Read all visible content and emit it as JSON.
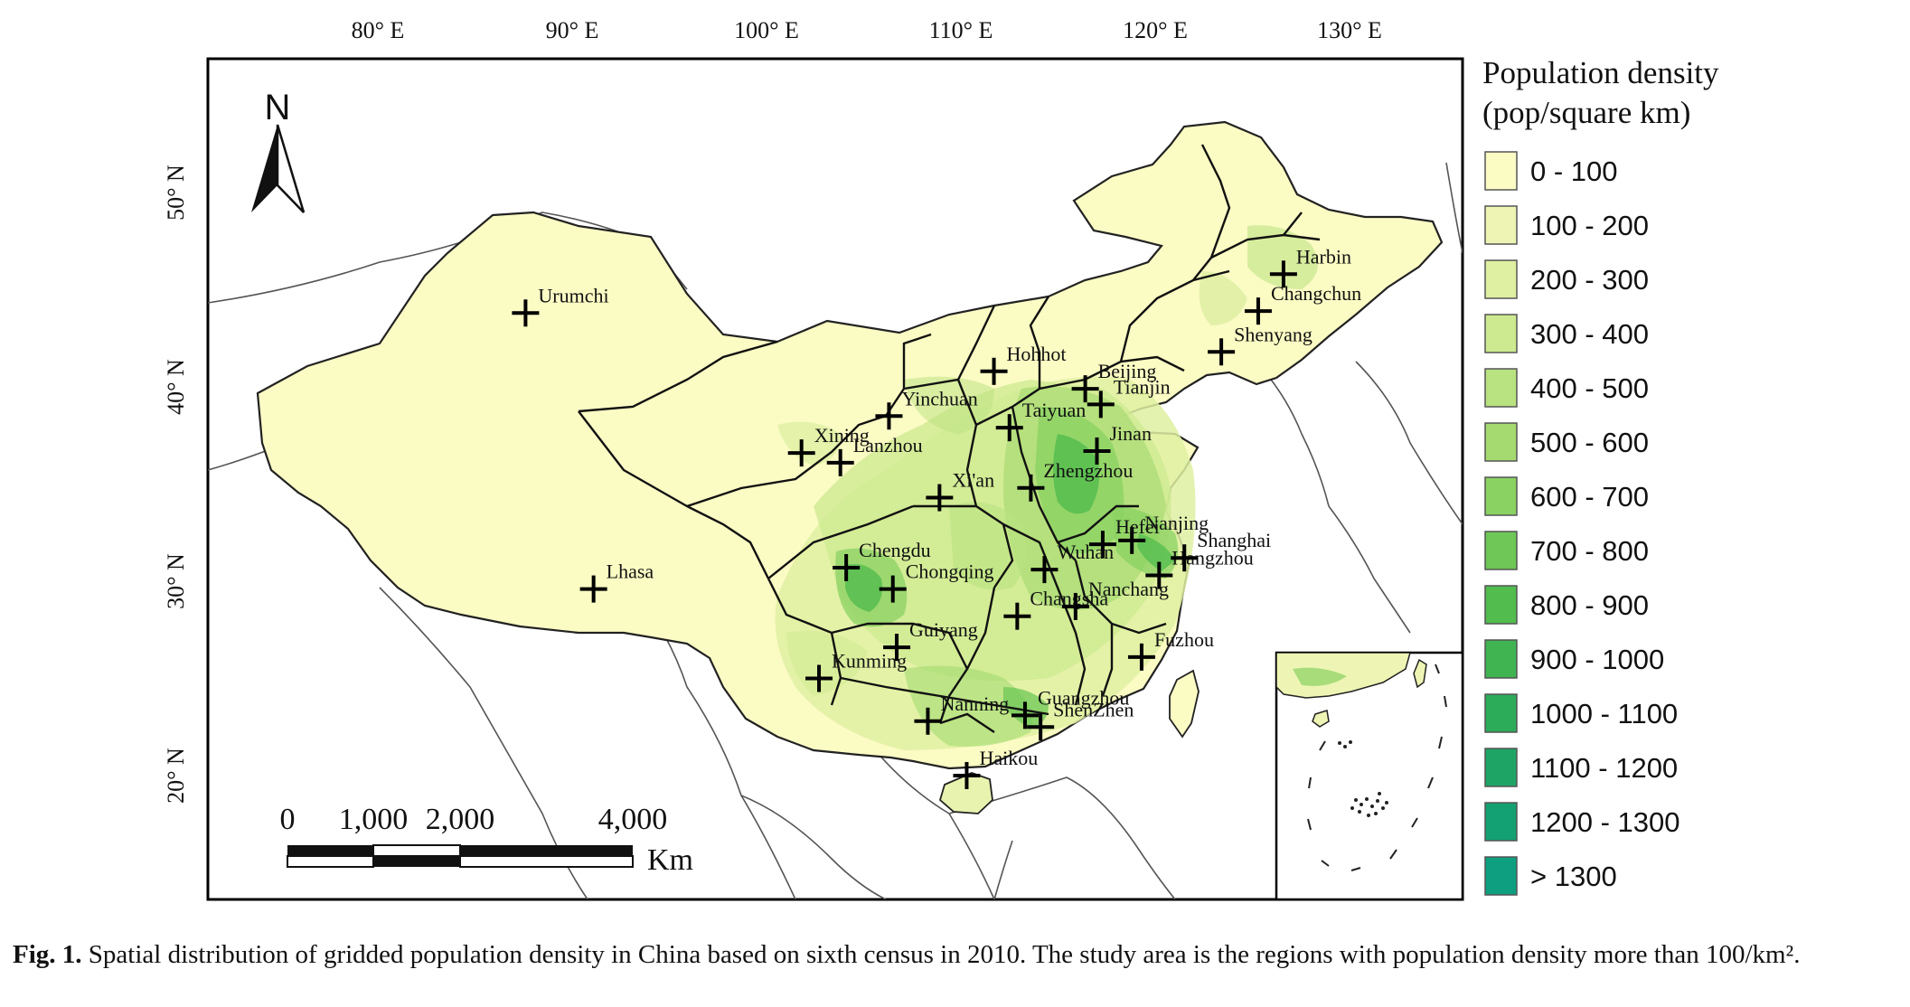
{
  "map": {
    "lon_ticks": [
      "80° E",
      "90° E",
      "100° E",
      "110° E",
      "120° E",
      "130° E"
    ],
    "lat_ticks": [
      "50° N",
      "40° N",
      "30° N",
      "20° N"
    ],
    "north_label": "N",
    "scale": {
      "labels": [
        "0",
        "1,000",
        "2,000",
        "4,000"
      ],
      "unit": "Km"
    },
    "cities": [
      {
        "name": "Urumchi",
        "lon": 87.6,
        "lat": 43.8
      },
      {
        "name": "Lhasa",
        "lon": 91.1,
        "lat": 29.6
      },
      {
        "name": "Xining",
        "lon": 101.8,
        "lat": 36.6
      },
      {
        "name": "Lanzhou",
        "lon": 103.8,
        "lat": 36.1
      },
      {
        "name": "Yinchuan",
        "lon": 106.3,
        "lat": 38.5
      },
      {
        "name": "Hohhot",
        "lon": 111.7,
        "lat": 40.8
      },
      {
        "name": "Beijing",
        "lon": 116.4,
        "lat": 39.9
      },
      {
        "name": "Tianjin",
        "lon": 117.2,
        "lat": 39.1
      },
      {
        "name": "Taiyuan",
        "lon": 112.5,
        "lat": 37.9
      },
      {
        "name": "Jinan",
        "lon": 117.0,
        "lat": 36.7
      },
      {
        "name": "Zhengzhou",
        "lon": 113.6,
        "lat": 34.8
      },
      {
        "name": "Xi'an",
        "lon": 108.9,
        "lat": 34.3
      },
      {
        "name": "Nanjing",
        "lon": 118.8,
        "lat": 32.1
      },
      {
        "name": "Hangzhou",
        "lon": 120.2,
        "lat": 30.3
      },
      {
        "name": "Shanghai",
        "lon": 121.5,
        "lat": 31.2
      },
      {
        "name": "Hefei",
        "lon": 117.3,
        "lat": 31.9
      },
      {
        "name": "Wuhan",
        "lon": 114.3,
        "lat": 30.6
      },
      {
        "name": "Changsha",
        "lon": 112.9,
        "lat": 28.2
      },
      {
        "name": "Nanchang",
        "lon": 115.9,
        "lat": 28.7
      },
      {
        "name": "Fuzhou",
        "lon": 119.3,
        "lat": 26.1
      },
      {
        "name": "Chengdu",
        "lon": 104.1,
        "lat": 30.7
      },
      {
        "name": "Chongqing",
        "lon": 106.5,
        "lat": 29.6
      },
      {
        "name": "Guiyang",
        "lon": 106.7,
        "lat": 26.6
      },
      {
        "name": "Kunming",
        "lon": 102.7,
        "lat": 25.0
      },
      {
        "name": "Nanning",
        "lon": 108.3,
        "lat": 22.8
      },
      {
        "name": "ShenZhen",
        "lon": 114.1,
        "lat": 22.5
      },
      {
        "name": "Guangzhou",
        "lon": 113.3,
        "lat": 23.1
      },
      {
        "name": "Haikou",
        "lon": 110.3,
        "lat": 20.0
      },
      {
        "name": "Harbin",
        "lon": 126.6,
        "lat": 45.8
      },
      {
        "name": "Changchun",
        "lon": 125.3,
        "lat": 43.9
      },
      {
        "name": "Shenyang",
        "lon": 123.4,
        "lat": 41.8
      }
    ]
  },
  "legend": {
    "title_line1": "Population density",
    "title_line2": "(pop/square km)",
    "classes": [
      {
        "label": "0 - 100",
        "color": "#fbfbc4"
      },
      {
        "label": "100 - 200",
        "color": "#eef5b4"
      },
      {
        "label": "200 - 300",
        "color": "#dff0a2"
      },
      {
        "label": "300 - 400",
        "color": "#cdea90"
      },
      {
        "label": "400 - 500",
        "color": "#b9e280"
      },
      {
        "label": "500 - 600",
        "color": "#a4da70"
      },
      {
        "label": "600 - 700",
        "color": "#8ad262"
      },
      {
        "label": "700 - 800",
        "color": "#6ec756"
      },
      {
        "label": "800 - 900",
        "color": "#52bc4e"
      },
      {
        "label": "900 - 1000",
        "color": "#3fb451"
      },
      {
        "label": "1000 - 1100",
        "color": "#2cab59"
      },
      {
        "label": "1100 - 1200",
        "color": "#1ea566"
      },
      {
        "label": "1200 - 1300",
        "color": "#13a072"
      },
      {
        "label": "> 1300",
        "color": "#0e9f80"
      }
    ]
  },
  "caption": {
    "label": "Fig. 1.",
    "text": "Spatial distribution of gridded population density in China based on sixth census in 2010. The study area is the regions with population density more than 100/km².",
    "text_end": ""
  },
  "colors": {
    "land": "#fbfbc4",
    "border": "#111111",
    "outline": "#444444"
  }
}
